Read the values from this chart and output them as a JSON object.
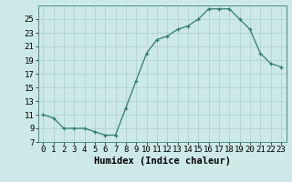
{
  "x": [
    0,
    1,
    2,
    3,
    4,
    5,
    6,
    7,
    8,
    9,
    10,
    11,
    12,
    13,
    14,
    15,
    16,
    17,
    18,
    19,
    20,
    21,
    22,
    23
  ],
  "y": [
    11,
    10.5,
    9,
    9,
    9,
    8.5,
    8,
    8,
    12,
    16,
    20,
    22,
    22.5,
    23.5,
    24,
    25,
    26.5,
    26.5,
    26.5,
    25,
    23.5,
    20,
    18.5,
    18
  ],
  "line_color": "#2e7d6e",
  "marker": "+",
  "marker_color": "#2e7d6e",
  "bg_color": "#cce9e7",
  "grid_color": "#aacfcd",
  "xlabel": "Humidex (Indice chaleur)",
  "xlim": [
    -0.5,
    23.5
  ],
  "ylim": [
    7,
    27
  ],
  "yticks": [
    7,
    9,
    11,
    13,
    15,
    17,
    19,
    21,
    23,
    25
  ],
  "xticks": [
    0,
    1,
    2,
    3,
    4,
    5,
    6,
    7,
    8,
    9,
    10,
    11,
    12,
    13,
    14,
    15,
    16,
    17,
    18,
    19,
    20,
    21,
    22,
    23
  ],
  "tick_fontsize": 6.5,
  "label_fontsize": 7.5
}
